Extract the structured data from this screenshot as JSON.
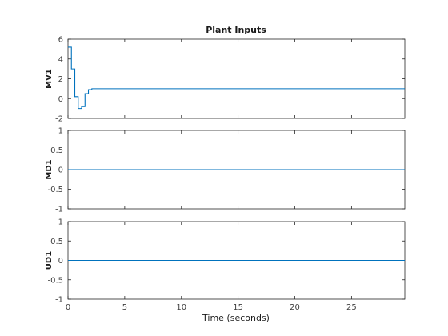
{
  "figure_title": "Plant Inputs",
  "xlabel": "Time (seconds)",
  "chart_data": [
    {
      "type": "line",
      "title": "Plant Inputs",
      "ylabel": "MV1",
      "xlim": [
        0,
        29.7
      ],
      "ylim": [
        -2,
        6
      ],
      "xticks": [
        0,
        5,
        10,
        15,
        20,
        25
      ],
      "yticks": [
        -2,
        0,
        2,
        4,
        6
      ],
      "show_xtick_labels": false,
      "step": true,
      "color": "#0072bd",
      "series": [
        {
          "x": [
            0,
            0.3,
            0.6,
            0.9,
            1.2,
            1.5,
            1.8,
            2.1,
            29.7
          ],
          "y": [
            5.2,
            3.0,
            0.2,
            -1.0,
            -0.8,
            0.5,
            0.9,
            1.0,
            1.0
          ]
        }
      ]
    },
    {
      "type": "line",
      "ylabel": "MD1",
      "xlim": [
        0,
        29.7
      ],
      "ylim": [
        -1,
        1
      ],
      "xticks": [
        0,
        5,
        10,
        15,
        20,
        25
      ],
      "yticks": [
        -1,
        -0.5,
        0,
        0.5,
        1
      ],
      "show_xtick_labels": false,
      "step": true,
      "color": "#0072bd",
      "series": [
        {
          "x": [
            0,
            29.7
          ],
          "y": [
            0,
            0
          ]
        }
      ]
    },
    {
      "type": "line",
      "ylabel": "UD1",
      "xlim": [
        0,
        29.7
      ],
      "ylim": [
        -1,
        1
      ],
      "xticks": [
        0,
        5,
        10,
        15,
        20,
        25
      ],
      "yticks": [
        -1,
        -0.5,
        0,
        0.5,
        1
      ],
      "show_xtick_labels": true,
      "xlabel": "Time (seconds)",
      "step": true,
      "color": "#0072bd",
      "series": [
        {
          "x": [
            0,
            29.7
          ],
          "y": [
            0,
            0
          ]
        }
      ]
    }
  ]
}
